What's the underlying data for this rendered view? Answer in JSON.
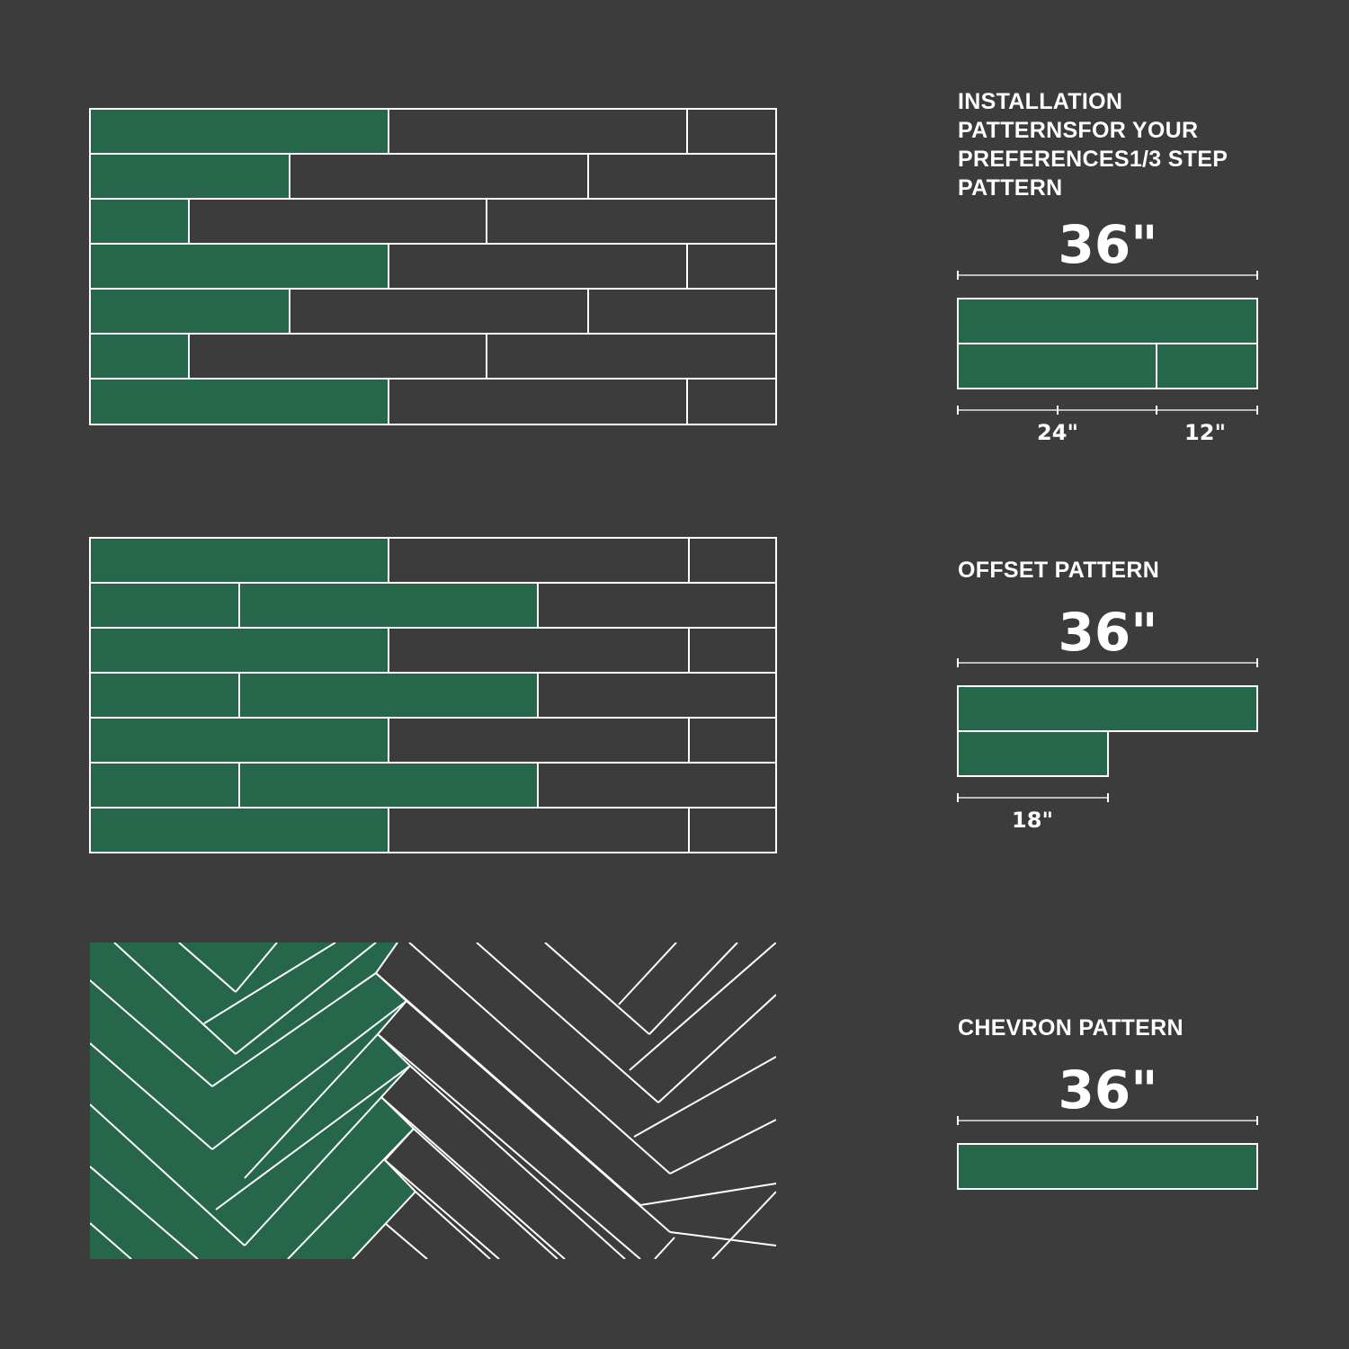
{
  "colors": {
    "background": "#3c3c3c",
    "tile_green": "#26664a",
    "line": "#ffffff"
  },
  "step": {
    "title": "INSTALLATION PATTERNSFOR YOUR PREFERENCES1/3 STEP PATTERN",
    "total": "36\"",
    "seg_a": "24\"",
    "seg_b": "12\""
  },
  "offset": {
    "title": "OFFSET PATTERN",
    "total": "36\"",
    "seg": "18\""
  },
  "chevron": {
    "title": "CHEVRON PATTERN",
    "total": "36\""
  }
}
